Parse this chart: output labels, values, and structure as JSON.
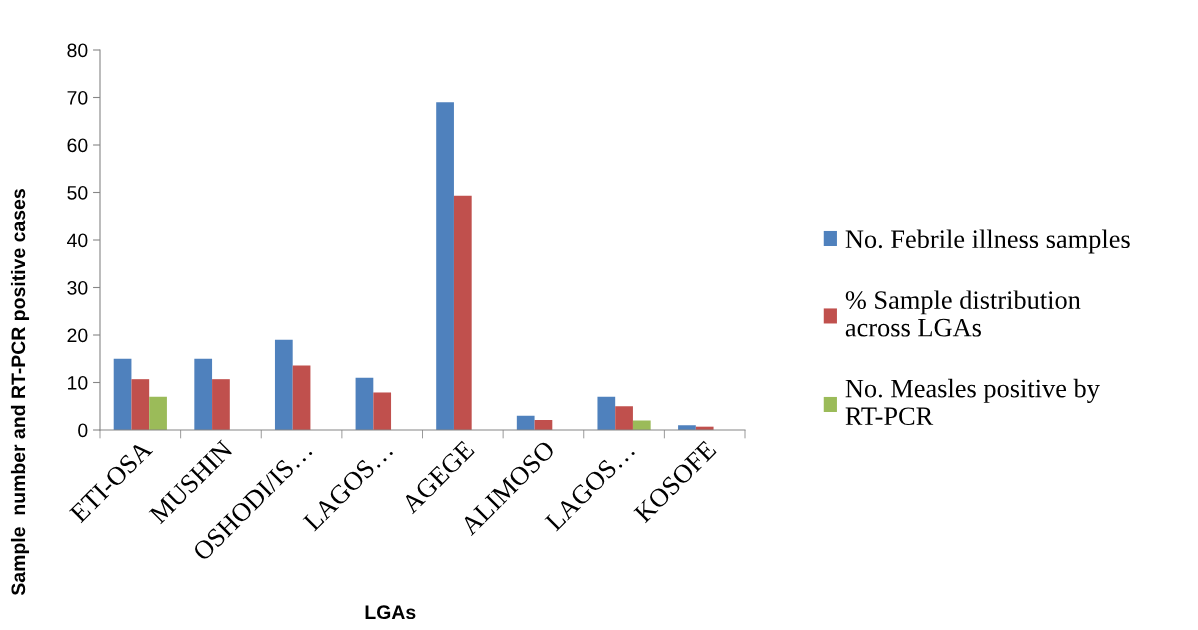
{
  "chart_data": {
    "type": "bar",
    "xlabel": "LGAs",
    "ylabel": "Sample  number and RT-PCR positive cases",
    "categories": [
      "ETI-OSA",
      "MUSHIN",
      "OSHODI/IS…",
      "LAGOS…",
      "AGEGE",
      "ALIMOSO",
      "LAGOS…",
      "KOSOFE"
    ],
    "series": [
      {
        "name": "No. Febrile illness samples",
        "color": "#4f81bd",
        "values": [
          15,
          15,
          19,
          11,
          69,
          3,
          7,
          1
        ]
      },
      {
        "name": "% Sample distribution across LGAs",
        "color": "#c0504d",
        "values": [
          10.7,
          10.7,
          13.6,
          7.9,
          49.3,
          2.1,
          5,
          0.7
        ]
      },
      {
        "name": "No. Measles positive by RT-PCR",
        "color": "#9bbb59",
        "values": [
          7,
          null,
          null,
          null,
          null,
          null,
          2,
          null
        ]
      }
    ],
    "ylim": [
      0,
      80
    ],
    "yticks": [
      0,
      10,
      20,
      30,
      40,
      50,
      60,
      70,
      80
    ],
    "grid": false,
    "legend": "right"
  }
}
